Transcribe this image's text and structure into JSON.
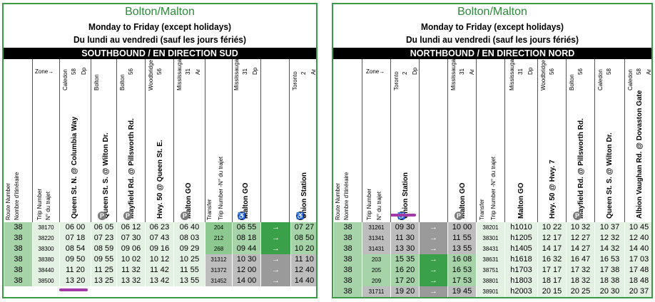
{
  "left": {
    "title": "Bolton/Malton",
    "subtitle1": "Monday to Friday (except holidays)",
    "subtitle2": "Du lundi au vendredi (sauf les jours fériés)",
    "direction": "SOUTHBOUND / EN DIRECTION SUD",
    "header": {
      "route_number": "Route Number",
      "route_number_fr": "Nombre d'itinéraire",
      "zone_label": "Zone→",
      "trip_number": "Trip Number",
      "trip_number_fr": "N° du trajet",
      "transfer": "Transfer",
      "transfer_trip": "Trip Number -N° du trajet",
      "stops": [
        {
          "muni": "Caledon",
          "zone": "58",
          "dp": "Dp",
          "name": "Queen St. N. @ Columbia Way",
          "icon": ""
        },
        {
          "muni": "Bolton",
          "zone": "",
          "dp": "",
          "name": "Queen St. S. @ Wilton Dr.",
          "icon": "P"
        },
        {
          "muni": "Bolton",
          "zone": "56",
          "dp": "",
          "name": "Mayfield Rd. @ Pillsworth Rd.",
          "icon": "P"
        },
        {
          "muni": "Woodbridge",
          "zone": "56",
          "dp": "",
          "name": "Hwy. 50 @ Queen St. E.",
          "icon": ""
        },
        {
          "muni": "Mississauga",
          "zone": "31",
          "dp": "Ar",
          "name": "Malton GO",
          "icon": "P"
        },
        {
          "muni": "Mississauga",
          "zone": "31",
          "dp": "Dp",
          "name": "Malton GO",
          "icon": "WC"
        },
        {
          "muni": "Toronto",
          "zone": "2",
          "dp": "Ar",
          "name": "Union Station",
          "icon": "WC"
        }
      ]
    },
    "rows": [
      {
        "route": "38",
        "trip": "38170",
        "times": [
          "06 00",
          "06 05",
          "06 12",
          "06 23",
          "06 40"
        ],
        "transfer": "204",
        "t2": "06 55",
        "arrow": "→",
        "final": "07 27",
        "style": "green"
      },
      {
        "route": "38",
        "trip": "38220",
        "times": [
          "07 18",
          "07 23",
          "07 30",
          "07 43",
          "08 03"
        ],
        "transfer": "212",
        "t2": "08 18",
        "arrow": "→",
        "final": "08 50",
        "style": "green"
      },
      {
        "route": "38",
        "trip": "38300",
        "times": [
          "08 54",
          "08 59",
          "09 06",
          "09 16",
          "09 29"
        ],
        "transfer": "268",
        "t2": "09 44",
        "arrow": "→",
        "final": "10 20",
        "style": "green"
      },
      {
        "route": "38",
        "trip": "38380",
        "times": [
          "09 50",
          "09 55",
          "10 02",
          "10 12",
          "10 25"
        ],
        "transfer": "31312",
        "t2": "10 30",
        "arrow": "→",
        "final": "11 10",
        "style": "gray"
      },
      {
        "route": "38",
        "trip": "38440",
        "times": [
          "11 20",
          "11 25",
          "11 32",
          "11 42",
          "11 55"
        ],
        "transfer": "31372",
        "t2": "12 00",
        "arrow": "→",
        "final": "12 40",
        "style": "gray"
      },
      {
        "route": "38",
        "trip": "38500",
        "times": [
          "13 20",
          "13 25",
          "13 32",
          "13 42",
          "13 55"
        ],
        "transfer": "31452",
        "t2": "14 00",
        "arrow": "→",
        "final": "14 40",
        "style": "gray"
      }
    ]
  },
  "right": {
    "title": "Bolton/Malton",
    "subtitle1": "Monday to Friday (except holidays)",
    "subtitle2": "Du lundi au vendredi (sauf les jours fériés)",
    "direction": "NORTHBOUND / EN DIRECTION NORD",
    "header": {
      "route_number": "Route Number",
      "route_number_fr": "Nombre d'itinéraire",
      "zone_label": "Zone→",
      "trip_number": "Trip Number",
      "trip_number_fr": "N° du trajet",
      "transfer": "Transfer",
      "transfer_trip": "Trip Number -N° du trajet",
      "stops": [
        {
          "muni": "Toronto",
          "zone": "2",
          "dp": "Dp",
          "name": "Union Station",
          "icon": "WC"
        },
        {
          "muni": "Mississauga",
          "zone": "31",
          "dp": "Ar",
          "name": "Malton GO",
          "icon": "P"
        },
        {
          "muni": "Mississauga",
          "zone": "31",
          "dp": "Dp",
          "name": "Malton GO",
          "icon": ""
        },
        {
          "muni": "Woodbridge",
          "zone": "56",
          "dp": "",
          "name": "Hwy. 50 @ Hwy. 7",
          "icon": ""
        },
        {
          "muni": "Bolton",
          "zone": "56",
          "dp": "",
          "name": "Mayfield Rd. @ Pillsworth Rd.",
          "icon": "P"
        },
        {
          "muni": "Caledon",
          "zone": "58",
          "dp": "",
          "name": "Queen St. S. @ Wilton Dr.",
          "icon": ""
        },
        {
          "muni": "Caledon",
          "zone": "58",
          "dp": "Ar",
          "name": "Albion Vaughan Rd. @ Dovaston Gate",
          "icon": ""
        }
      ]
    },
    "rows": [
      {
        "route": "38",
        "trip": "31261",
        "t1": "09 30",
        "arrow": "→",
        "t2": "10 00",
        "transfer": "38201",
        "times": [
          "h1010",
          "10 22",
          "10 32",
          "10 37",
          "10 45"
        ],
        "style": "white"
      },
      {
        "route": "38",
        "trip": "31341",
        "t1": "11 30",
        "arrow": "→",
        "t2": "11 55",
        "transfer": "38301",
        "times": [
          "h1205",
          "12 17",
          "12 27",
          "12 32",
          "12 40"
        ],
        "style": "white"
      },
      {
        "route": "38",
        "trip": "31431",
        "t1": "13 30",
        "arrow": "→",
        "t2": "13 55",
        "transfer": "38431",
        "times": [
          "h1405",
          "14 17",
          "14 27",
          "14 32",
          "14 40"
        ],
        "style": "white"
      },
      {
        "route": "38",
        "trip": "203",
        "t1": "15 35",
        "arrow": "→",
        "t2": "16 08",
        "transfer": "38631",
        "times": [
          "h1618",
          "16 32",
          "16 47",
          "16 53",
          "17 03"
        ],
        "style": "green"
      },
      {
        "route": "38",
        "trip": "205",
        "t1": "16 20",
        "arrow": "→",
        "t2": "16 53",
        "transfer": "38751",
        "times": [
          "h1703",
          "17 17",
          "17 32",
          "17 38",
          "17 48"
        ],
        "style": "green"
      },
      {
        "route": "38",
        "trip": "209",
        "t1": "17 20",
        "arrow": "→",
        "t2": "17 53",
        "transfer": "38801",
        "times": [
          "h1803",
          "18 17",
          "18 32",
          "18 38",
          "18 48"
        ],
        "style": "green"
      },
      {
        "route": "38",
        "trip": "31711",
        "t1": "19 20",
        "arrow": "→",
        "t2": "19 45",
        "transfer": "38901",
        "times": [
          "h2003",
          "20 15",
          "20 25",
          "20 30",
          "20 37"
        ],
        "style": "gray"
      }
    ]
  }
}
